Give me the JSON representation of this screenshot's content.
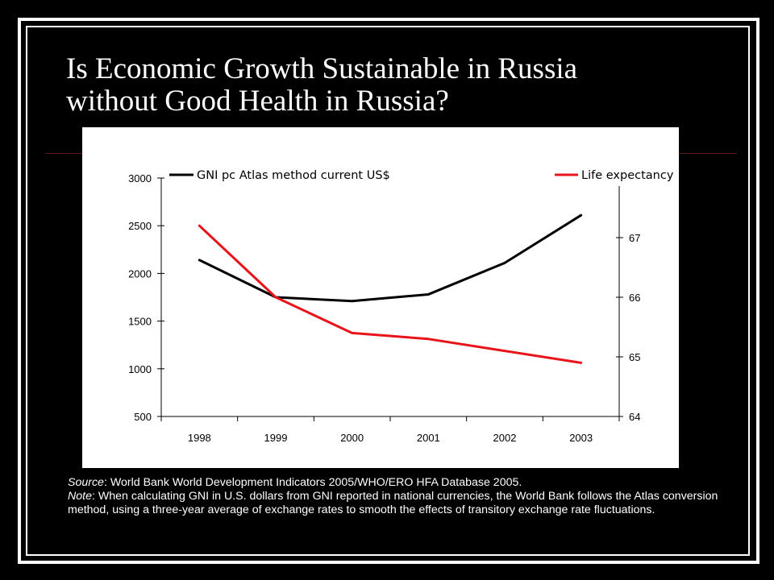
{
  "slide": {
    "title_line1": "Is Economic Growth Sustainable in Russia",
    "title_line2": "without Good Health in Russia?",
    "source_label": "Source",
    "source_text": ": World Bank World Development Indicators 2005/WHO/ERO HFA Database 2005.",
    "note_label": "Note",
    "note_text": ": When calculating GNI in U.S. dollars from GNI reported in national currencies, the World Bank follows the Atlas conversion method, using a three-year average of exchange rates to smooth the effects of transitory exchange rate fluctuations."
  },
  "chart_data": {
    "type": "line",
    "categories": [
      "1998",
      "1999",
      "2000",
      "2001",
      "2002",
      "2003"
    ],
    "series": [
      {
        "name": "GNI pc Atlas method current US$",
        "axis": "left",
        "color": "#000000",
        "values": [
          2140,
          1750,
          1710,
          1780,
          2110,
          2610
        ]
      },
      {
        "name": "Life expectancy",
        "axis": "right",
        "color": "#e8141a",
        "values": [
          67.2,
          66.0,
          65.4,
          65.3,
          65.1,
          64.9
        ]
      }
    ],
    "left_axis": {
      "ylim": [
        500,
        3000
      ],
      "ticks": [
        "500",
        "1000",
        "1500",
        "2000",
        "2500",
        "3000"
      ]
    },
    "right_axis": {
      "ylim": [
        64,
        68
      ],
      "ticks": [
        "64",
        "65",
        "66",
        "67"
      ]
    },
    "legend": "top",
    "grid": false
  }
}
